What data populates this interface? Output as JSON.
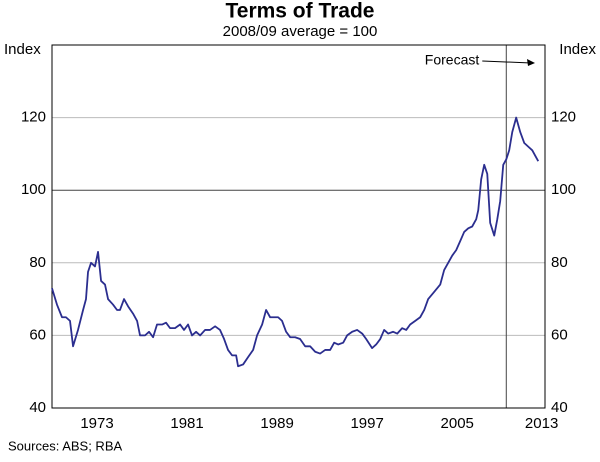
{
  "chart_data": {
    "type": "line",
    "title": "Terms of Trade",
    "subtitle": "2008/09 average = 100",
    "y_label": "Index",
    "y2_label": "Index",
    "source": "Sources: ABS; RBA",
    "annotation": {
      "text": "Forecast",
      "x": 2009.86
    },
    "xlim": [
      1969.5,
      2013.3
    ],
    "xticks": [
      {
        "value": 1973.5,
        "label": "1973"
      },
      {
        "value": 1981.5,
        "label": "1981"
      },
      {
        "value": 1989.5,
        "label": "1989"
      },
      {
        "value": 1997.5,
        "label": "1997"
      },
      {
        "value": 2005.5,
        "label": "2005"
      },
      {
        "value": 2013.0,
        "label": "2013"
      }
    ],
    "ylim": [
      40,
      140
    ],
    "yticks": [
      40,
      60,
      80,
      100,
      120
    ],
    "y2lim": [
      40,
      140
    ],
    "y2ticks": [
      40,
      60,
      80,
      100,
      120
    ],
    "grid": true,
    "highlight_tick": 100,
    "series": [
      {
        "color": "#2b2e8f",
        "x": [
          1969.5,
          1969.94,
          1970.39,
          1970.74,
          1971.1,
          1971.37,
          1971.81,
          1972.26,
          1972.52,
          1972.7,
          1972.97,
          1973.32,
          1973.59,
          1973.86,
          1974.21,
          1974.48,
          1974.92,
          1975.28,
          1975.54,
          1975.9,
          1976.26,
          1976.7,
          1977.06,
          1977.32,
          1977.77,
          1978.12,
          1978.48,
          1978.83,
          1979.28,
          1979.63,
          1979.99,
          1980.43,
          1980.88,
          1981.23,
          1981.59,
          1981.94,
          1982.3,
          1982.66,
          1983.1,
          1983.54,
          1983.99,
          1984.43,
          1984.79,
          1985.14,
          1985.5,
          1985.86,
          1986.03,
          1986.48,
          1986.92,
          1987.37,
          1987.72,
          1988.17,
          1988.52,
          1988.88,
          1989.23,
          1989.59,
          1989.94,
          1990.3,
          1990.66,
          1991.1,
          1991.54,
          1991.99,
          1992.43,
          1992.88,
          1993.32,
          1993.77,
          1994.21,
          1994.57,
          1994.92,
          1995.37,
          1995.72,
          1996.17,
          1996.61,
          1997.06,
          1997.41,
          1997.94,
          1998.3,
          1998.66,
          1999.01,
          1999.37,
          1999.81,
          2000.17,
          2000.61,
          2000.97,
          2001.32,
          2001.77,
          2002.21,
          2002.57,
          2002.92,
          2003.46,
          2003.99,
          2004.34,
          2004.7,
          2005.06,
          2005.41,
          2005.77,
          2006.12,
          2006.48,
          2006.83,
          2007.19,
          2007.37,
          2007.63,
          2007.9,
          2008.17,
          2008.43,
          2008.79,
          2009.06,
          2009.32,
          2009.59,
          2009.86,
          2010.12,
          2010.39,
          2010.74,
          2011.1,
          2011.46,
          2011.81,
          2012.17,
          2012.43,
          2012.7
        ],
        "values": [
          73,
          68.5,
          65,
          65,
          64,
          57,
          61.5,
          67,
          70,
          77.5,
          80,
          79,
          83,
          75,
          74,
          70,
          68.5,
          67,
          67,
          70,
          68,
          66,
          64,
          60,
          60,
          61,
          59.5,
          63,
          63,
          63.5,
          62,
          62,
          63,
          61.5,
          63,
          60,
          61,
          60,
          61.5,
          61.5,
          62.5,
          61.5,
          59,
          56,
          54.5,
          54.5,
          51.5,
          52,
          54,
          56,
          60,
          63,
          67,
          65,
          65,
          65,
          64,
          61,
          59.5,
          59.5,
          59,
          57,
          57,
          55.5,
          55,
          56,
          56,
          58,
          57.5,
          58,
          60,
          61,
          61.5,
          60.5,
          59,
          56.5,
          57.5,
          59,
          61.5,
          60.5,
          61,
          60.5,
          62,
          61.5,
          63,
          64,
          65,
          67,
          70,
          72,
          74,
          78,
          80,
          82,
          83.5,
          86,
          88.5,
          89.5,
          90,
          92,
          94.5,
          103,
          107,
          104.5,
          91,
          87.5,
          92,
          97,
          107,
          108.5,
          111,
          116,
          120,
          116,
          113,
          112,
          111,
          109.5,
          108
        ]
      }
    ]
  }
}
